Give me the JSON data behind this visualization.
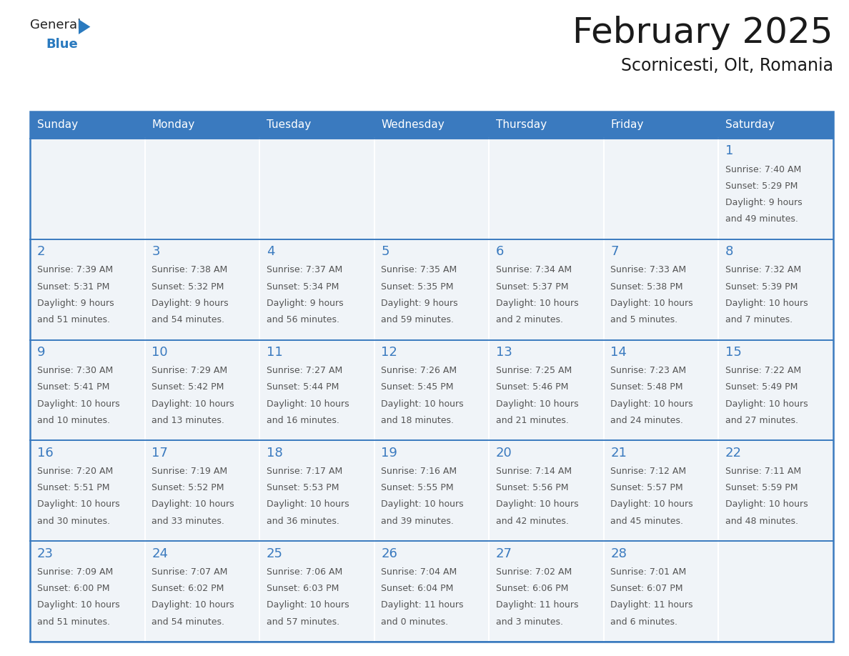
{
  "title": "February 2025",
  "subtitle": "Scornicesti, Olt, Romania",
  "header_bg_color": "#3a7abf",
  "header_text_color": "#ffffff",
  "cell_bg_color": "#f0f4f8",
  "border_color": "#3a7abf",
  "row_sep_color": "#3a7abf",
  "day_names": [
    "Sunday",
    "Monday",
    "Tuesday",
    "Wednesday",
    "Thursday",
    "Friday",
    "Saturday"
  ],
  "title_color": "#1a1a1a",
  "subtitle_color": "#1a1a1a",
  "day_number_color": "#3a7abf",
  "info_text_color": "#555555",
  "days": [
    {
      "day": 1,
      "col": 6,
      "row": 0,
      "sunrise": "7:40 AM",
      "sunset": "5:29 PM",
      "daylight_h": "9 hours",
      "daylight_m": "and 49 minutes."
    },
    {
      "day": 2,
      "col": 0,
      "row": 1,
      "sunrise": "7:39 AM",
      "sunset": "5:31 PM",
      "daylight_h": "9 hours",
      "daylight_m": "and 51 minutes."
    },
    {
      "day": 3,
      "col": 1,
      "row": 1,
      "sunrise": "7:38 AM",
      "sunset": "5:32 PM",
      "daylight_h": "9 hours",
      "daylight_m": "and 54 minutes."
    },
    {
      "day": 4,
      "col": 2,
      "row": 1,
      "sunrise": "7:37 AM",
      "sunset": "5:34 PM",
      "daylight_h": "9 hours",
      "daylight_m": "and 56 minutes."
    },
    {
      "day": 5,
      "col": 3,
      "row": 1,
      "sunrise": "7:35 AM",
      "sunset": "5:35 PM",
      "daylight_h": "9 hours",
      "daylight_m": "and 59 minutes."
    },
    {
      "day": 6,
      "col": 4,
      "row": 1,
      "sunrise": "7:34 AM",
      "sunset": "5:37 PM",
      "daylight_h": "10 hours",
      "daylight_m": "and 2 minutes."
    },
    {
      "day": 7,
      "col": 5,
      "row": 1,
      "sunrise": "7:33 AM",
      "sunset": "5:38 PM",
      "daylight_h": "10 hours",
      "daylight_m": "and 5 minutes."
    },
    {
      "day": 8,
      "col": 6,
      "row": 1,
      "sunrise": "7:32 AM",
      "sunset": "5:39 PM",
      "daylight_h": "10 hours",
      "daylight_m": "and 7 minutes."
    },
    {
      "day": 9,
      "col": 0,
      "row": 2,
      "sunrise": "7:30 AM",
      "sunset": "5:41 PM",
      "daylight_h": "10 hours",
      "daylight_m": "and 10 minutes."
    },
    {
      "day": 10,
      "col": 1,
      "row": 2,
      "sunrise": "7:29 AM",
      "sunset": "5:42 PM",
      "daylight_h": "10 hours",
      "daylight_m": "and 13 minutes."
    },
    {
      "day": 11,
      "col": 2,
      "row": 2,
      "sunrise": "7:27 AM",
      "sunset": "5:44 PM",
      "daylight_h": "10 hours",
      "daylight_m": "and 16 minutes."
    },
    {
      "day": 12,
      "col": 3,
      "row": 2,
      "sunrise": "7:26 AM",
      "sunset": "5:45 PM",
      "daylight_h": "10 hours",
      "daylight_m": "and 18 minutes."
    },
    {
      "day": 13,
      "col": 4,
      "row": 2,
      "sunrise": "7:25 AM",
      "sunset": "5:46 PM",
      "daylight_h": "10 hours",
      "daylight_m": "and 21 minutes."
    },
    {
      "day": 14,
      "col": 5,
      "row": 2,
      "sunrise": "7:23 AM",
      "sunset": "5:48 PM",
      "daylight_h": "10 hours",
      "daylight_m": "and 24 minutes."
    },
    {
      "day": 15,
      "col": 6,
      "row": 2,
      "sunrise": "7:22 AM",
      "sunset": "5:49 PM",
      "daylight_h": "10 hours",
      "daylight_m": "and 27 minutes."
    },
    {
      "day": 16,
      "col": 0,
      "row": 3,
      "sunrise": "7:20 AM",
      "sunset": "5:51 PM",
      "daylight_h": "10 hours",
      "daylight_m": "and 30 minutes."
    },
    {
      "day": 17,
      "col": 1,
      "row": 3,
      "sunrise": "7:19 AM",
      "sunset": "5:52 PM",
      "daylight_h": "10 hours",
      "daylight_m": "and 33 minutes."
    },
    {
      "day": 18,
      "col": 2,
      "row": 3,
      "sunrise": "7:17 AM",
      "sunset": "5:53 PM",
      "daylight_h": "10 hours",
      "daylight_m": "and 36 minutes."
    },
    {
      "day": 19,
      "col": 3,
      "row": 3,
      "sunrise": "7:16 AM",
      "sunset": "5:55 PM",
      "daylight_h": "10 hours",
      "daylight_m": "and 39 minutes."
    },
    {
      "day": 20,
      "col": 4,
      "row": 3,
      "sunrise": "7:14 AM",
      "sunset": "5:56 PM",
      "daylight_h": "10 hours",
      "daylight_m": "and 42 minutes."
    },
    {
      "day": 21,
      "col": 5,
      "row": 3,
      "sunrise": "7:12 AM",
      "sunset": "5:57 PM",
      "daylight_h": "10 hours",
      "daylight_m": "and 45 minutes."
    },
    {
      "day": 22,
      "col": 6,
      "row": 3,
      "sunrise": "7:11 AM",
      "sunset": "5:59 PM",
      "daylight_h": "10 hours",
      "daylight_m": "and 48 minutes."
    },
    {
      "day": 23,
      "col": 0,
      "row": 4,
      "sunrise": "7:09 AM",
      "sunset": "6:00 PM",
      "daylight_h": "10 hours",
      "daylight_m": "and 51 minutes."
    },
    {
      "day": 24,
      "col": 1,
      "row": 4,
      "sunrise": "7:07 AM",
      "sunset": "6:02 PM",
      "daylight_h": "10 hours",
      "daylight_m": "and 54 minutes."
    },
    {
      "day": 25,
      "col": 2,
      "row": 4,
      "sunrise": "7:06 AM",
      "sunset": "6:03 PM",
      "daylight_h": "10 hours",
      "daylight_m": "and 57 minutes."
    },
    {
      "day": 26,
      "col": 3,
      "row": 4,
      "sunrise": "7:04 AM",
      "sunset": "6:04 PM",
      "daylight_h": "11 hours",
      "daylight_m": "and 0 minutes."
    },
    {
      "day": 27,
      "col": 4,
      "row": 4,
      "sunrise": "7:02 AM",
      "sunset": "6:06 PM",
      "daylight_h": "11 hours",
      "daylight_m": "and 3 minutes."
    },
    {
      "day": 28,
      "col": 5,
      "row": 4,
      "sunrise": "7:01 AM",
      "sunset": "6:07 PM",
      "daylight_h": "11 hours",
      "daylight_m": "and 6 minutes."
    }
  ],
  "num_rows": 5,
  "logo_general_color": "#222222",
  "logo_blue_color": "#2a7abf",
  "title_fontsize": 36,
  "subtitle_fontsize": 17,
  "header_fontsize": 11,
  "day_num_fontsize": 13,
  "info_fontsize": 9
}
